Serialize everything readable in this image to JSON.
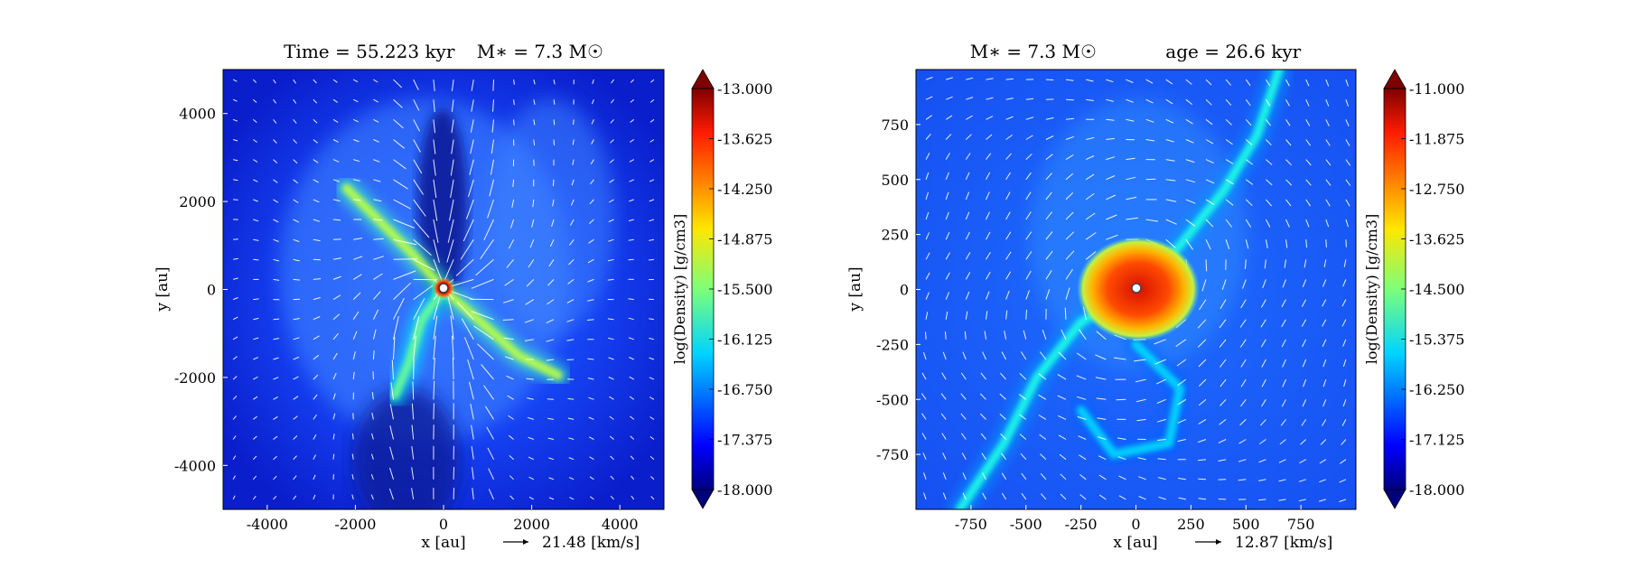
{
  "chart_data": [
    {
      "type": "heatmap",
      "title_left": "Time = 55.223 kyr",
      "title_right": "M$_*$ = 7.3 M$_\\odot$",
      "title_left_text": "Time = 55.223 kyr",
      "title_right_text": "M∗ = 7.3 M☉",
      "xlabel": "x [au]",
      "ylabel": "y [au]",
      "xlim": [
        -5000,
        5000
      ],
      "ylim": [
        -5000,
        5000
      ],
      "xticks": [
        -4000,
        -2000,
        0,
        2000,
        4000
      ],
      "xtick_labels": [
        "-4000",
        "-2000",
        "0",
        "2000",
        "4000"
      ],
      "yticks": [
        -4000,
        -2000,
        0,
        2000,
        4000
      ],
      "ytick_labels": [
        "-4000",
        "-2000",
        "0",
        "2000",
        "4000"
      ],
      "quiver_key": "21.48 [km/s]",
      "colorbar": {
        "label": "log(Density) [g/cm3]",
        "range": [
          -18.0,
          -13.0
        ],
        "ticks": [
          -13.0,
          -13.625,
          -14.25,
          -14.875,
          -15.5,
          -16.125,
          -16.75,
          -17.375,
          -18.0
        ],
        "tick_labels": [
          "-13.000",
          "-13.625",
          "-14.250",
          "-14.875",
          "-15.500",
          "-16.125",
          "-16.750",
          "-17.375",
          "-18.000"
        ]
      },
      "features": [
        {
          "name": "filament-nw",
          "points": [
            [
              -2200,
              2300
            ],
            [
              -1400,
              1500
            ],
            [
              -700,
              800
            ],
            [
              0,
              0
            ]
          ],
          "level": -15.2
        },
        {
          "name": "filament-se",
          "points": [
            [
              0,
              0
            ],
            [
              800,
              -700
            ],
            [
              1700,
              -1500
            ],
            [
              2600,
              -1950
            ]
          ],
          "level": -15.2
        },
        {
          "name": "filament-sw",
          "points": [
            [
              0,
              0
            ],
            [
              -500,
              -700
            ],
            [
              -800,
              -1700
            ],
            [
              -1100,
              -2400
            ]
          ],
          "level": -15.6
        },
        {
          "name": "central-source",
          "points": [
            [
              0,
              0
            ]
          ],
          "level": -13.0
        }
      ]
    },
    {
      "type": "heatmap",
      "title_left": "M$_*$ = 7.3 M$_\\odot$",
      "title_right": "age = 26.6 kyr",
      "title_left_text": "M∗ = 7.3 M☉",
      "title_right_text": "age = 26.6 kyr",
      "xlabel": "x [au]",
      "ylabel": "y [au]",
      "xlim": [
        -1000,
        1000
      ],
      "ylim": [
        -1000,
        1000
      ],
      "xticks": [
        -750,
        -500,
        -250,
        0,
        250,
        500,
        750
      ],
      "xtick_labels": [
        "-750",
        "-500",
        "-250",
        "0",
        "250",
        "500",
        "750"
      ],
      "yticks": [
        -750,
        -500,
        -250,
        0,
        250,
        500,
        750
      ],
      "ytick_labels": [
        "-750",
        "-500",
        "-250",
        "0",
        "250",
        "500",
        "750"
      ],
      "quiver_key": "12.87 [km/s]",
      "colorbar": {
        "label": "log(Density) [g/cm3]",
        "range": [
          -18.0,
          -11.0
        ],
        "ticks": [
          -11.0,
          -11.875,
          -12.75,
          -13.625,
          -14.5,
          -15.375,
          -16.25,
          -17.125,
          -18.0
        ],
        "tick_labels": [
          "-11.000",
          "-11.875",
          "-12.750",
          "-13.625",
          "-14.500",
          "-15.375",
          "-16.250",
          "-17.125",
          "-18.000"
        ]
      },
      "features": [
        {
          "name": "filament-ne",
          "points": [
            [
              0,
              0
            ],
            [
              200,
              200
            ],
            [
              400,
              450
            ],
            [
              550,
              700
            ],
            [
              650,
              1000
            ]
          ],
          "level": -15.2
        },
        {
          "name": "filament-sw",
          "points": [
            [
              0,
              0
            ],
            [
              -250,
              -150
            ],
            [
              -450,
              -400
            ],
            [
              -600,
              -700
            ],
            [
              -800,
              -1000
            ]
          ],
          "level": -15.2
        },
        {
          "name": "filament-loop",
          "points": [
            [
              0,
              -250
            ],
            [
              200,
              -450
            ],
            [
              150,
              -700
            ],
            [
              -100,
              -750
            ],
            [
              -250,
              -550
            ]
          ],
          "level": -15.6
        },
        {
          "name": "central-disk",
          "points": [
            [
              0,
              0
            ]
          ],
          "level": -12.5
        }
      ]
    }
  ]
}
